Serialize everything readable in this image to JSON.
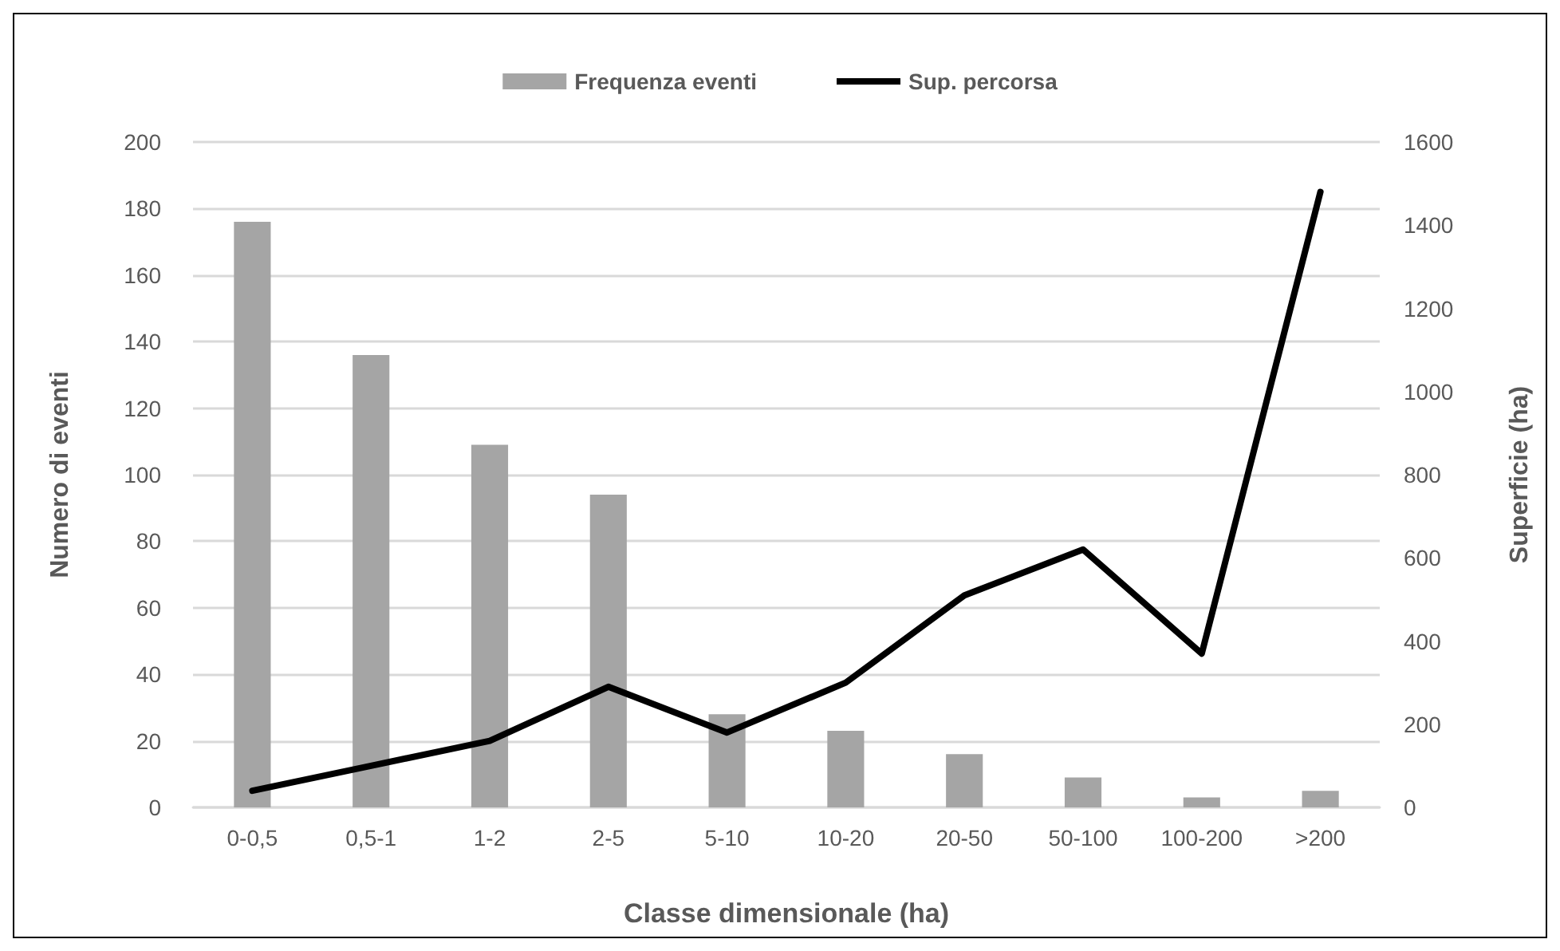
{
  "chart_data": {
    "type": "bar",
    "categories": [
      "0-0,5",
      "0,5-1",
      "1-2",
      "2-5",
      "5-10",
      "10-20",
      "20-50",
      "50-100",
      "100-200",
      ">200"
    ],
    "series": [
      {
        "name": "Frequenza eventi",
        "color": "#a5a5a5",
        "values": [
          176,
          136,
          109,
          94,
          28,
          23,
          16,
          9,
          3,
          5
        ]
      },
      {
        "name": "Sup. percorsa",
        "type": "line",
        "axis": "y2",
        "color": "#000000",
        "values": [
          40,
          100,
          160,
          290,
          180,
          300,
          510,
          620,
          370,
          1480
        ]
      }
    ],
    "xlabel": "Classe dimensionale (ha)",
    "ylabel": "Numero di eventi",
    "y2label": "Superficie (ha)",
    "ylim": [
      0,
      200
    ],
    "yticks": [
      0,
      20,
      40,
      60,
      80,
      100,
      120,
      140,
      160,
      180,
      200
    ],
    "y2lim": [
      0,
      1600
    ],
    "y2ticks": [
      0,
      200,
      400,
      600,
      800,
      1000,
      1200,
      1400,
      1600
    ],
    "grid": "y",
    "legend": "top",
    "marker": "none",
    "line_style": "solid"
  }
}
